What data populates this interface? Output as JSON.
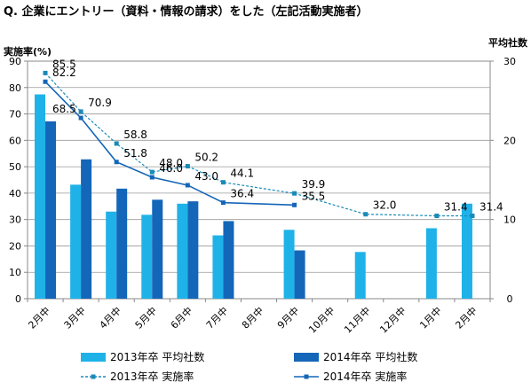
{
  "title": "Q. 企業にエントリー（資料・情報の請求）をした（左記活動実施者）",
  "chart_data": {
    "type": "bar",
    "title": "Q. 企業にエントリー（資料・情報の請求）をした（左記活動実施者）",
    "categories": [
      "2月中",
      "3月中",
      "4月中",
      "5月中",
      "6月中",
      "7月中",
      "8月中",
      "9月中",
      "10月中",
      "11月中",
      "12月中",
      "1月中",
      "2月中"
    ],
    "y_left": {
      "label": "実施率(%)",
      "min": 0,
      "max": 90,
      "ticks": [
        0,
        10,
        20,
        30,
        40,
        50,
        60,
        70,
        80,
        90
      ]
    },
    "y_right": {
      "label": "平均社数",
      "min": 0,
      "max": 30,
      "ticks": [
        0,
        10,
        20,
        30
      ]
    },
    "grid": true,
    "legend_position": "bottom",
    "bar_series": [
      {
        "name": "2013年卒 平均社数",
        "color": "#1fb2e8",
        "axis": "right",
        "values": [
          25.8,
          14.4,
          11.0,
          10.6,
          12.0,
          8.0,
          null,
          8.7,
          null,
          5.9,
          null,
          8.9,
          12.0
        ]
      },
      {
        "name": "2014年卒 平均社数",
        "color": "#1466b8",
        "axis": "right",
        "values": [
          22.4,
          17.6,
          13.9,
          12.5,
          12.3,
          9.8,
          null,
          6.1,
          null,
          null,
          null,
          null,
          null
        ]
      }
    ],
    "line_series": [
      {
        "name": "2013年卒 実施率",
        "color": "#1a8ab8",
        "dashed": true,
        "axis": "left",
        "values": [
          85.5,
          70.9,
          58.8,
          48.0,
          50.2,
          44.1,
          null,
          39.9,
          null,
          32.0,
          null,
          31.4,
          31.4
        ]
      },
      {
        "name": "2014年卒 実施率",
        "color": "#1466b8",
        "dashed": false,
        "axis": "left",
        "values": [
          82.2,
          68.5,
          51.8,
          46.0,
          43.0,
          36.4,
          null,
          35.5,
          null,
          null,
          null,
          null,
          null
        ]
      }
    ],
    "data_labels": [
      {
        "text": "85.5",
        "x": 0,
        "y": 85.5
      },
      {
        "text": "82.2",
        "x": 0,
        "y": 82.2
      },
      {
        "text": "68.5",
        "x": 0,
        "y": 68.5
      },
      {
        "text": "70.9",
        "x": 1,
        "y": 70.9
      },
      {
        "text": "58.8",
        "x": 2,
        "y": 58.8
      },
      {
        "text": "51.8",
        "x": 2,
        "y": 51.8
      },
      {
        "text": "46.0",
        "x": 3,
        "y": 46.0
      },
      {
        "text": "48.0",
        "x": 3,
        "y": 48.0
      },
      {
        "text": "50.2",
        "x": 4,
        "y": 50.2
      },
      {
        "text": "43.0",
        "x": 4,
        "y": 43.0
      },
      {
        "text": "44.1",
        "x": 5,
        "y": 44.1
      },
      {
        "text": "36.4",
        "x": 5,
        "y": 36.4
      },
      {
        "text": "39.9",
        "x": 7,
        "y": 39.9
      },
      {
        "text": "35.5",
        "x": 7,
        "y": 35.5
      },
      {
        "text": "32.0",
        "x": 9,
        "y": 32.0
      },
      {
        "text": "31.4",
        "x": 11,
        "y": 31.4
      },
      {
        "text": "31.4",
        "x": 12,
        "y": 31.4
      }
    ]
  }
}
